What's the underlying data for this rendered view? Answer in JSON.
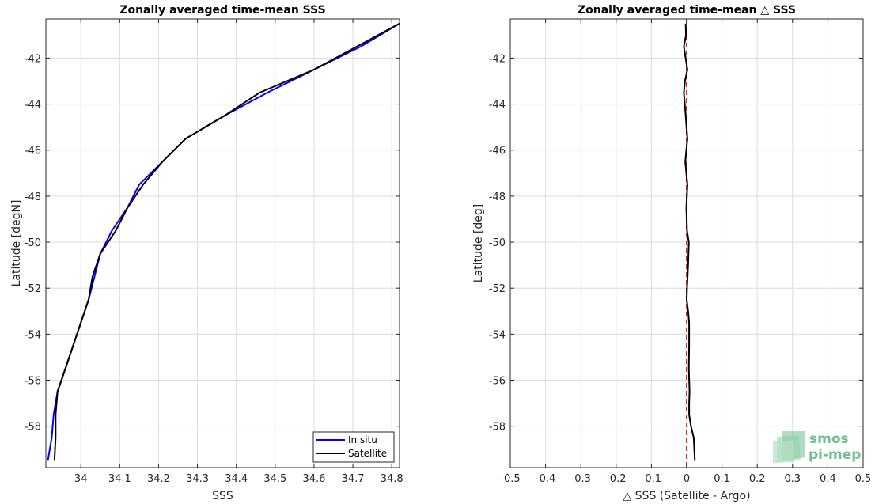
{
  "chart_data": [
    {
      "type": "line",
      "title": "Zonally averaged time-mean SSS",
      "xlabel": "SSS",
      "ylabel": "Latitude [degN]",
      "xlim": [
        33.91,
        34.82
      ],
      "ylim": [
        -59.8,
        -40.3
      ],
      "xticks": [
        34,
        34.1,
        34.2,
        34.3,
        34.4,
        34.5,
        34.6,
        34.7,
        34.8
      ],
      "xtick_labels": [
        "34",
        "34.1",
        "34.2",
        "34.3",
        "34.4",
        "34.5",
        "34.6",
        "34.7",
        "34.8"
      ],
      "yticks": [
        -42,
        -44,
        -46,
        -48,
        -50,
        -52,
        -54,
        -56,
        -58
      ],
      "ytick_labels": [
        "-42",
        "-44",
        "-46",
        "-48",
        "-50",
        "-52",
        "-54",
        "-56",
        "-58"
      ],
      "grid": true,
      "legend": "bottom-right",
      "series": [
        {
          "name": "In situ",
          "color": "#0000ff",
          "x": [
            34.82,
            34.72,
            34.6,
            34.48,
            34.37,
            34.27,
            34.21,
            34.15,
            34.12,
            34.08,
            34.05,
            34.035,
            34.02,
            34.0,
            33.98,
            33.96,
            33.94,
            33.93,
            33.925,
            33.915
          ],
          "y": [
            -40.5,
            -41.5,
            -42.5,
            -43.5,
            -44.5,
            -45.5,
            -46.5,
            -47.5,
            -48.5,
            -49.5,
            -50.5,
            -51.5,
            -52.5,
            -53.5,
            -54.5,
            -55.5,
            -56.5,
            -57.5,
            -58.5,
            -59.5
          ]
        },
        {
          "name": "Satellite",
          "color": "#000000",
          "x": [
            34.82,
            34.71,
            34.6,
            34.46,
            34.37,
            34.27,
            34.21,
            34.16,
            34.12,
            34.09,
            34.05,
            34.03,
            34.02,
            34.0,
            33.98,
            33.96,
            33.94,
            33.935,
            33.935,
            33.932
          ],
          "y": [
            -40.5,
            -41.5,
            -42.5,
            -43.5,
            -44.5,
            -45.5,
            -46.5,
            -47.5,
            -48.5,
            -49.5,
            -50.5,
            -51.5,
            -52.5,
            -53.5,
            -54.5,
            -55.5,
            -56.5,
            -57.5,
            -58.5,
            -59.5
          ]
        }
      ]
    },
    {
      "type": "line",
      "title": "Zonally averaged time-mean △ SSS",
      "xlabel": "△ SSS (Satellite - Argo)",
      "ylabel": "Latitude [deg]",
      "xlim": [
        -0.5,
        0.5
      ],
      "ylim": [
        -59.8,
        -40.3
      ],
      "xticks": [
        -0.5,
        -0.4,
        -0.3,
        -0.2,
        -0.1,
        0,
        0.1,
        0.2,
        0.3,
        0.4,
        0.5
      ],
      "xtick_labels": [
        "-0.5",
        "-0.4",
        "-0.3",
        "-0.2",
        "-0.1",
        "0",
        "0.1",
        "0.2",
        "0.3",
        "0.4",
        "0.5"
      ],
      "yticks": [
        -42,
        -44,
        -46,
        -48,
        -50,
        -52,
        -54,
        -56,
        -58
      ],
      "ytick_labels": [
        "-42",
        "-44",
        "-46",
        "-48",
        "-50",
        "-52",
        "-54",
        "-56",
        "-58"
      ],
      "grid": true,
      "zero_line_color": "#e8231e",
      "series": [
        {
          "color": "#000000",
          "x": [
            -0.003,
            -0.002,
            -0.008,
            0.002,
            -0.005,
            -0.008,
            -0.003,
            0.002,
            -0.004,
            0.002,
            -0.001,
            0.001,
            0.006,
            0.004,
            0.001,
            0.0,
            0.004,
            0.007,
            0.007,
            0.006,
            0.008,
            0.007,
            0.007,
            0.012,
            0.02,
            0.023
          ],
          "y": [
            -40.5,
            -41.0,
            -41.5,
            -42.5,
            -43.0,
            -43.5,
            -44.5,
            -45.5,
            -46.5,
            -47.5,
            -48.5,
            -49.5,
            -50.0,
            -51.0,
            -52.0,
            -52.5,
            -53.0,
            -53.5,
            -54.5,
            -55.5,
            -56.5,
            -57.0,
            -57.5,
            -58.0,
            -58.5,
            -59.5
          ]
        }
      ]
    }
  ],
  "logo": {
    "line1": "smos",
    "line2": "pi-mep",
    "color": "#6fbf93"
  }
}
